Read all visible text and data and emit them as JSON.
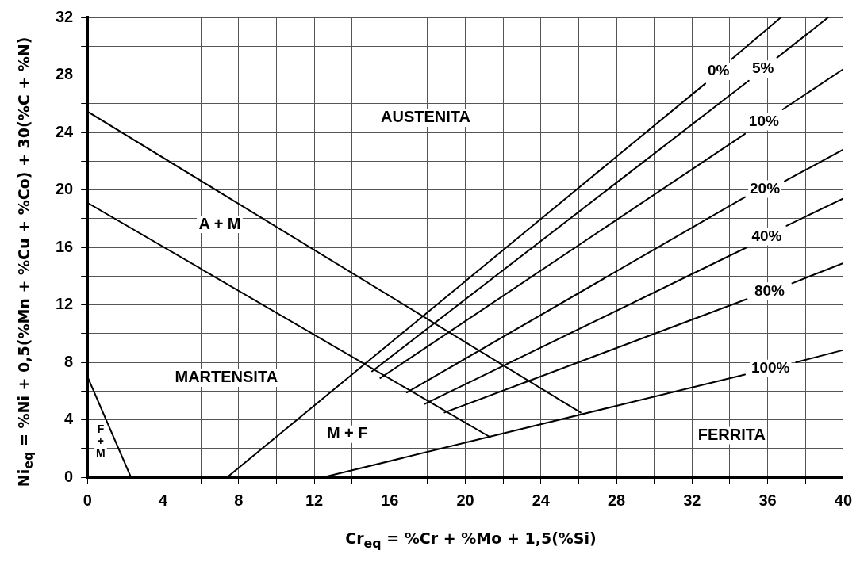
{
  "chart_data": {
    "type": "line",
    "xlabel": "Cr$_{eq}$ = %Cr + %Mo + 1,5(%Si)",
    "ylabel": "Ni$_{eq}$ = %Ni + 0,5(%Mn + %Cu + %Co) + 30(%C + %N)",
    "xlim": [
      0,
      40
    ],
    "ylim": [
      0,
      32
    ],
    "xticks": [
      0,
      {
        "value": 2,
        "label": null
      },
      4,
      {
        "value": 6,
        "label": null
      },
      8,
      {
        "value": 10,
        "label": null
      },
      12,
      {
        "value": 14,
        "label": null
      },
      16,
      {
        "value": 18,
        "label": null
      },
      20,
      {
        "value": 22,
        "label": null
      },
      24,
      {
        "value": 26,
        "label": null
      },
      28,
      {
        "value": 30,
        "label": null
      },
      32,
      {
        "value": 34,
        "label": null
      },
      36,
      {
        "value": 38,
        "label": null
      },
      40
    ],
    "yticks": [
      0,
      {
        "value": 2,
        "label": null
      },
      4,
      {
        "value": 6,
        "label": null
      },
      8,
      {
        "value": 10,
        "label": null
      },
      12,
      {
        "value": 14,
        "label": null
      },
      16,
      {
        "value": 18,
        "label": null
      },
      20,
      {
        "value": 22,
        "label": null
      },
      24,
      {
        "value": 26,
        "label": null
      },
      28,
      {
        "value": 30,
        "label": null
      },
      32
    ],
    "grid": true,
    "marker": "none",
    "line_style": "solid",
    "series": [
      {
        "color": "#000000",
        "x": [
          0,
          26.1
        ],
        "values": [
          25.45,
          4.5
        ]
      },
      {
        "color": "#000000",
        "x": [
          0,
          21.3
        ],
        "values": [
          19.1,
          2.8
        ]
      },
      {
        "color": "#000000",
        "x": [
          0,
          2.3
        ],
        "values": [
          7.0,
          0
        ]
      },
      {
        "name": "0%",
        "color": "#000000",
        "x": [
          7.4,
          32.7,
          33.4,
          34.1,
          36.7
        ],
        "values": [
          0,
          27.4,
          null,
          29.1,
          32
        ]
      },
      {
        "name": "5%",
        "color": "#000000",
        "x": [
          15.06,
          35.0,
          35.7,
          36.5,
          39.2
        ],
        "values": [
          7.37,
          27.6,
          null,
          29.2,
          32
        ]
      },
      {
        "name": "10%",
        "color": "#000000",
        "x": [
          15.5,
          34.8,
          35.8,
          36.8,
          40
        ],
        "values": [
          6.9,
          23.9,
          null,
          25.6,
          28.4
        ]
      },
      {
        "name": "20%",
        "color": "#000000",
        "x": [
          16.9,
          34.8,
          35.8,
          36.9,
          40
        ],
        "values": [
          5.9,
          19.5,
          null,
          20.6,
          22.8
        ]
      },
      {
        "name": "40%",
        "color": "#000000",
        "x": [
          17.85,
          34.9,
          36.0,
          37.0,
          40
        ],
        "values": [
          5.1,
          16.0,
          null,
          17.5,
          19.4
        ]
      },
      {
        "name": "80%",
        "color": "#000000",
        "x": [
          18.9,
          34.9,
          36.1,
          37.3,
          40
        ],
        "values": [
          4.5,
          12.4,
          null,
          13.5,
          14.9
        ]
      },
      {
        "name": "100%",
        "color": "#000000",
        "x": [
          12.5,
          34.8,
          36.1,
          37.5,
          40
        ],
        "values": [
          0,
          7.15,
          null,
          8.0,
          8.85
        ]
      }
    ],
    "annotations": [
      "AUSTENITA",
      "A + M",
      "MARTENSITA",
      "M + F",
      "FERRITA",
      "F\n+\nM"
    ]
  }
}
